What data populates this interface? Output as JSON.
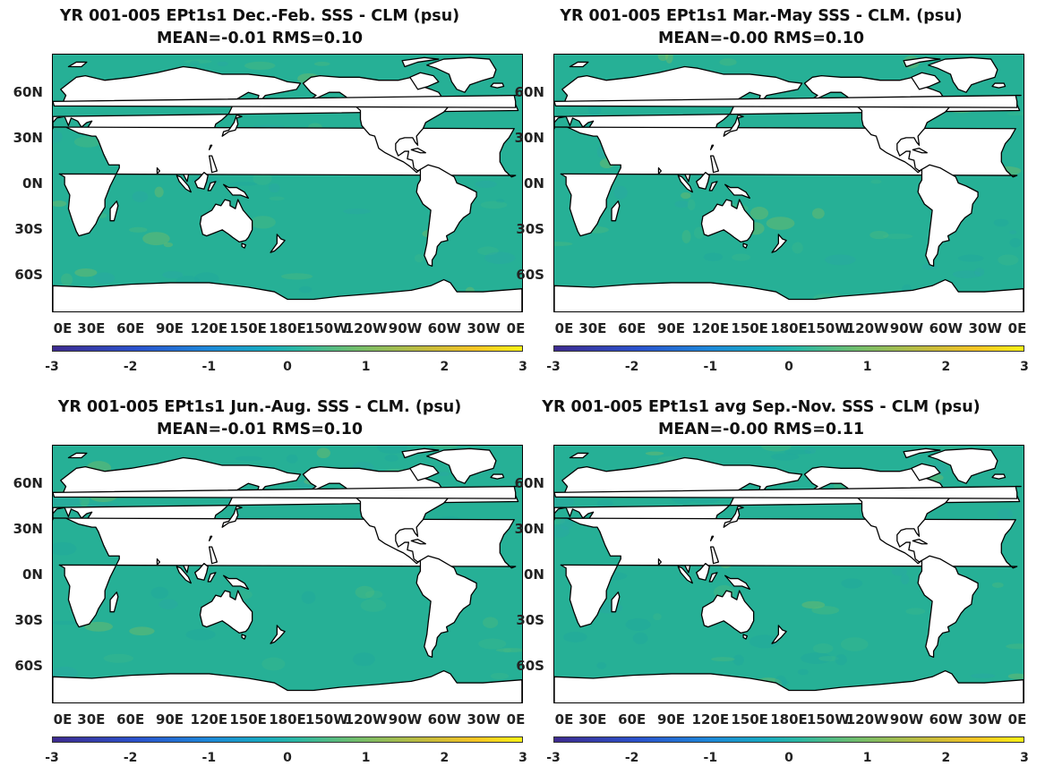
{
  "panels": [
    {
      "title": "YR 001-005 EPt1s1  Dec.-Feb. SSS - CLM (psu)",
      "stats": "MEAN=-0.01   RMS=0.10"
    },
    {
      "title": "YR 001-005 EPt1s1 Mar.-May SSS - CLM. (psu)",
      "stats": "MEAN=-0.00   RMS=0.10"
    },
    {
      "title": "YR 001-005 EPt1s1 Jun.-Aug. SSS - CLM. (psu)",
      "stats": "MEAN=-0.01   RMS=0.10"
    },
    {
      "title": "YR 001-005 EPt1s1 avg Sep.-Nov. SSS - CLM (psu)",
      "stats": "MEAN=-0.00   RMS=0.11"
    }
  ],
  "lat_labels": [
    "60N",
    "30N",
    "0N",
    "30S",
    "60S"
  ],
  "lon_labels": [
    "0E",
    "30E",
    "60E",
    "90E",
    "120E",
    "150E",
    "180E",
    "150W",
    "120W",
    "90W",
    "60W",
    "30W",
    "0E"
  ],
  "colorbar_labels": [
    "-3",
    "-2",
    "-1",
    "0",
    "1",
    "2",
    "3"
  ],
  "colors": {
    "ocean": "#26b096",
    "land": "#ffffff",
    "coast": "#000000"
  }
}
